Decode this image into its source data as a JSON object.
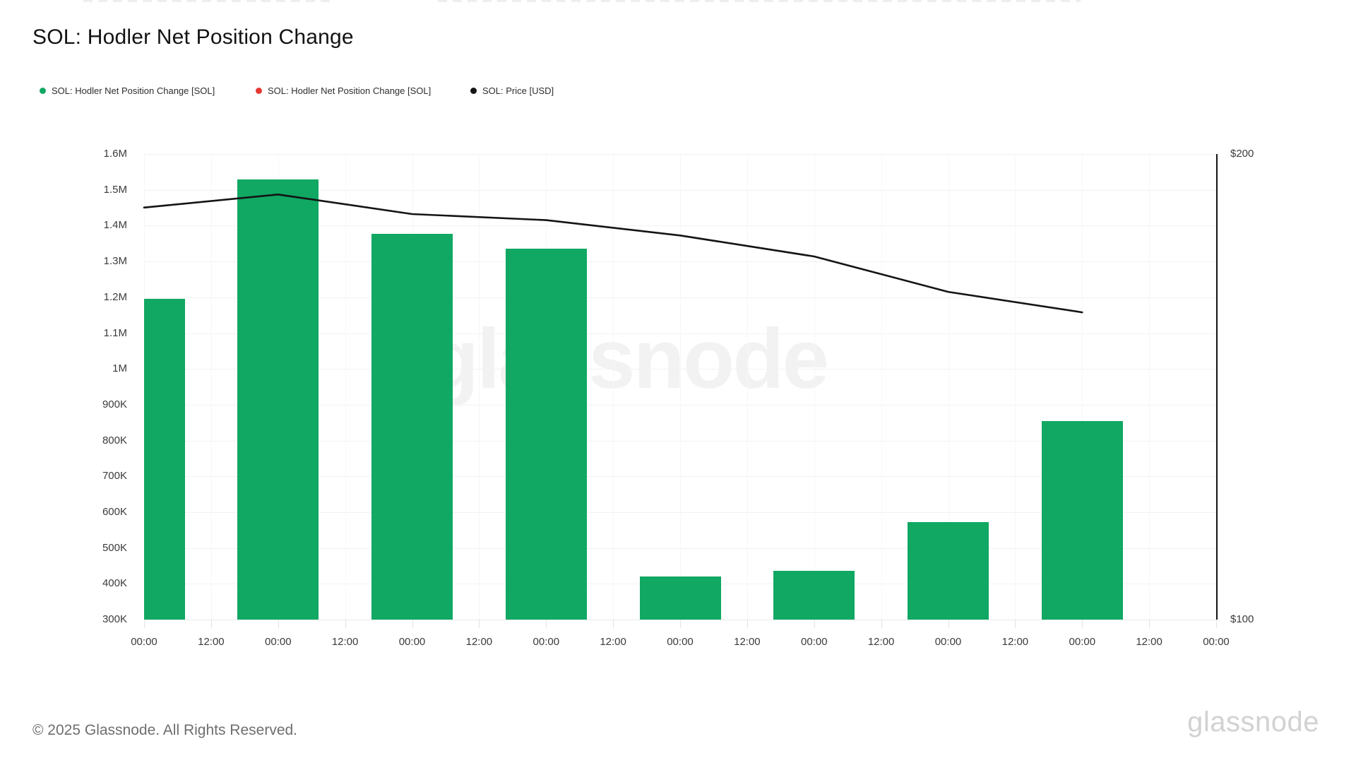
{
  "title": "SOL: Hodler Net Position Change",
  "legend": [
    {
      "label": "SOL: Hodler Net Position Change [SOL]",
      "color": "#10a863"
    },
    {
      "label": "SOL: Hodler Net Position Change [SOL]",
      "color": "#e53832"
    },
    {
      "label": "SOL: Price [USD]",
      "color": "#141414"
    }
  ],
  "watermark": "glassnode",
  "footer": {
    "copyright": "© 2025 Glassnode. All Rights Reserved.",
    "brand": "glassnode"
  },
  "chart_data": {
    "type": "bar+line",
    "title": "SOL: Hodler Net Position Change",
    "grid": true,
    "x_tick_labels": [
      "00:00",
      "12:00",
      "00:00",
      "12:00",
      "00:00",
      "12:00",
      "00:00",
      "12:00",
      "00:00",
      "12:00",
      "00:00",
      "12:00",
      "00:00",
      "12:00",
      "00:00",
      "12:00",
      "00:00"
    ],
    "left_axis": {
      "min": 300000,
      "max": 1600000,
      "tick_step": 100000,
      "tick_labels": [
        "300K",
        "400K",
        "500K",
        "600K",
        "700K",
        "800K",
        "900K",
        "1M",
        "1.1M",
        "1.2M",
        "1.3M",
        "1.4M",
        "1.5M",
        "1.6M"
      ]
    },
    "right_axis": {
      "min": 100,
      "max": 200,
      "tick_labels": [
        "$100",
        "$200"
      ]
    },
    "series": [
      {
        "name": "SOL: Hodler Net Position Change [SOL]",
        "type": "bar",
        "color": "#10a863",
        "x_tick_index": [
          0,
          2,
          4,
          6,
          8,
          10,
          12,
          14
        ],
        "values": [
          1195000,
          1530000,
          1378000,
          1335000,
          421000,
          437000,
          572000,
          855000
        ]
      },
      {
        "name": "SOL: Price [USD]",
        "type": "line",
        "color": "#141414",
        "x_tick_index": [
          0,
          2,
          4,
          6,
          8,
          10,
          12,
          14
        ],
        "values_usd": [
          188.5,
          191.3,
          187.1,
          185.8,
          182.5,
          178.0,
          170.4,
          166.0
        ]
      }
    ]
  }
}
